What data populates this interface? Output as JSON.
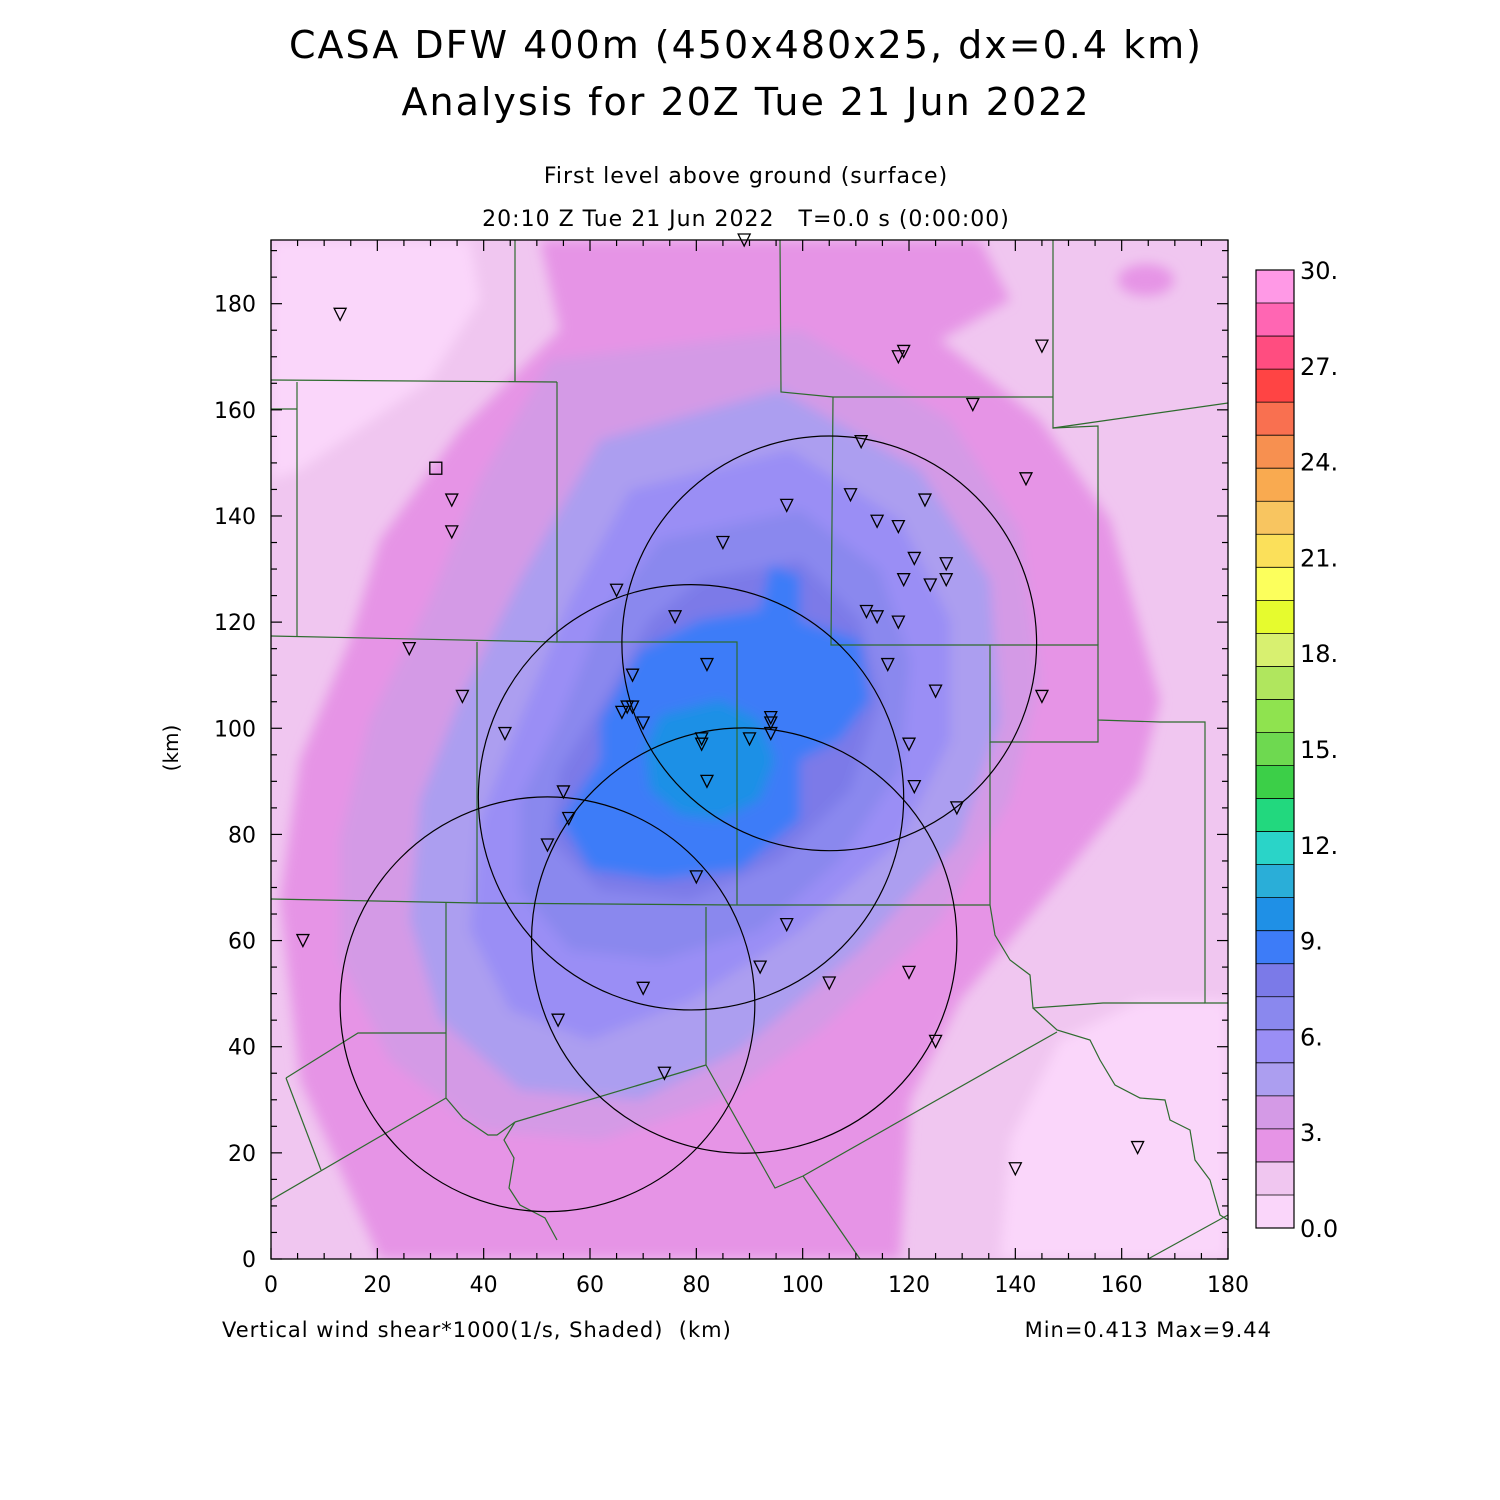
{
  "title": {
    "line1": "CASA DFW 400m (450x480x25, dx=0.4 km)",
    "line2": "Analysis for 20Z Tue 21 Jun 2022"
  },
  "subtitle": {
    "level": "First level above ground (surface)",
    "time": "20:10 Z Tue 21 Jun 2022   T=0.0 s (0:00:00)"
  },
  "axes": {
    "y_label": "(km)",
    "x_ticks": [
      "0",
      "20",
      "40",
      "60",
      "80",
      "100",
      "120",
      "140",
      "160",
      "180"
    ],
    "y_ticks": [
      "0",
      "20",
      "40",
      "60",
      "80",
      "100",
      "120",
      "140",
      "160",
      "180"
    ]
  },
  "footer": {
    "field_label": "Vertical wind shear*1000(1/s, Shaded)  (km)",
    "minmax": "Min=0.413 Max=9.44"
  },
  "colorbar": {
    "labels": [
      "30.",
      "27.",
      "24.",
      "21.",
      "18.",
      "15.",
      "12.",
      "9.",
      "6.",
      "3.",
      "0.0"
    ],
    "colors": [
      "#ff99e6",
      "#ff66b3",
      "#ff4d80",
      "#ff4444",
      "#f97050",
      "#f79050",
      "#f9aa50",
      "#f8c560",
      "#fbe05a",
      "#fcff5c",
      "#e6fb2e",
      "#d8f070",
      "#b0e65e",
      "#8fe34f",
      "#6ed950",
      "#3ccf48",
      "#22d87e",
      "#2ad4c8",
      "#2aaed8",
      "#1f90e6",
      "#3d7cf8",
      "#7b7ae8",
      "#8a88ee",
      "#9a8ef5",
      "#ac9ef0",
      "#d49ae6",
      "#e694e6",
      "#f0c6f0",
      "#fad6fa"
    ]
  },
  "chart_data": {
    "type": "heatmap",
    "variable": "Vertical wind shear*1000(1/s, Shaded)",
    "xlim": [
      0,
      180
    ],
    "ylim": [
      0,
      192
    ],
    "color_range": [
      0.0,
      30.0
    ],
    "min": 0.413,
    "max": 9.44,
    "radar_rings": [
      {
        "center": [
          105,
          116
        ],
        "radius": 39
      },
      {
        "center": [
          79,
          87
        ],
        "radius": 40
      },
      {
        "center": [
          52,
          48
        ],
        "radius": 39
      },
      {
        "center": [
          89,
          60
        ],
        "radius": 40
      }
    ],
    "stations": [
      [
        13,
        178
      ],
      [
        89,
        192
      ],
      [
        118,
        170
      ],
      [
        119,
        171
      ],
      [
        145,
        172
      ],
      [
        132,
        161
      ],
      [
        142,
        147
      ],
      [
        111,
        154
      ],
      [
        97,
        142
      ],
      [
        109,
        144
      ],
      [
        123,
        143
      ],
      [
        34,
        143
      ],
      [
        34,
        137
      ],
      [
        114,
        139
      ],
      [
        118,
        138
      ],
      [
        85,
        135
      ],
      [
        121,
        132
      ],
      [
        127,
        131
      ],
      [
        119,
        128
      ],
      [
        124,
        127
      ],
      [
        127,
        128
      ],
      [
        65,
        126
      ],
      [
        76,
        121
      ],
      [
        112,
        122
      ],
      [
        114,
        121
      ],
      [
        118,
        120
      ],
      [
        26,
        115
      ],
      [
        82,
        112
      ],
      [
        116,
        112
      ],
      [
        68,
        110
      ],
      [
        36,
        106
      ],
      [
        125,
        107
      ],
      [
        145,
        106
      ],
      [
        67,
        104
      ],
      [
        68,
        104
      ],
      [
        66,
        103
      ],
      [
        70,
        101
      ],
      [
        94,
        102
      ],
      [
        94,
        101
      ],
      [
        94,
        99
      ],
      [
        44,
        99
      ],
      [
        81,
        98
      ],
      [
        81,
        97
      ],
      [
        90,
        98
      ],
      [
        120,
        97
      ],
      [
        82,
        90
      ],
      [
        121,
        89
      ],
      [
        55,
        88
      ],
      [
        56,
        83
      ],
      [
        129,
        85
      ],
      [
        52,
        78
      ],
      [
        80,
        72
      ],
      [
        97,
        63
      ],
      [
        6,
        60
      ],
      [
        92,
        55
      ],
      [
        120,
        54
      ],
      [
        105,
        52
      ],
      [
        70,
        51
      ],
      [
        54,
        45
      ],
      [
        125,
        41
      ],
      [
        74,
        35
      ],
      [
        163,
        21
      ],
      [
        140,
        17
      ]
    ],
    "station_square": [
      31,
      149
    ]
  }
}
